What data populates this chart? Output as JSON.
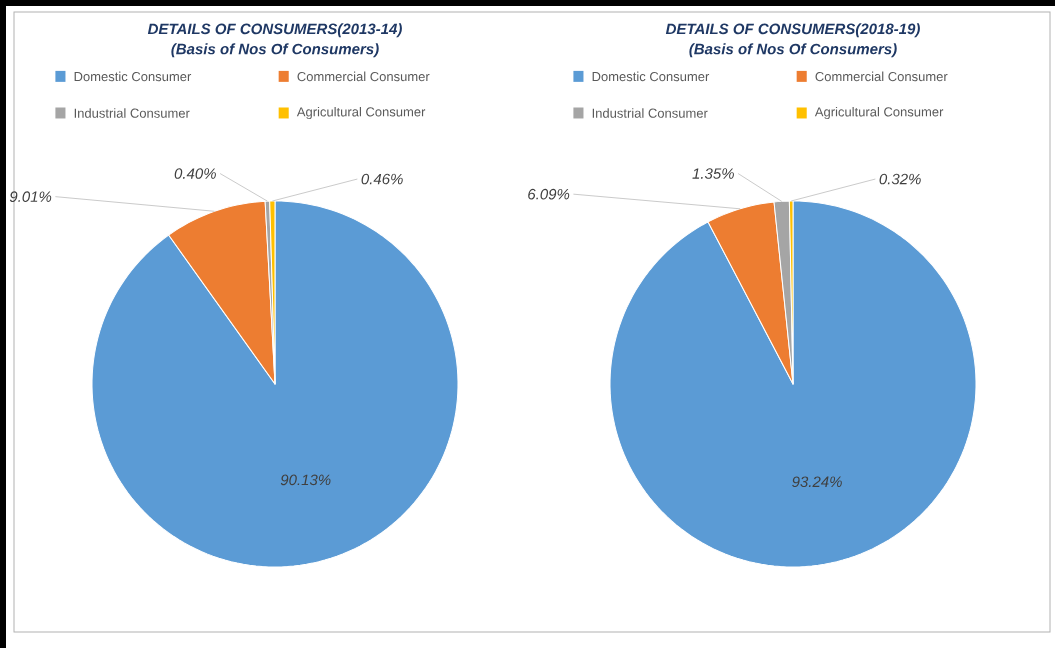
{
  "chart_data": [
    {
      "type": "pie",
      "title": "DETAILS OF CONSUMERS(2013-14)",
      "subtitle": "(Basis of Nos Of Consumers)",
      "categories": [
        "Domestic Consumer",
        "Commercial Consumer",
        "Industrial Consumer",
        "Agricultural Consumer"
      ],
      "values": [
        90.13,
        9.01,
        0.4,
        0.46
      ],
      "value_labels": [
        "90.13%",
        "9.01%",
        "0.40%",
        "0.46%"
      ],
      "colors": [
        "#5b9bd5",
        "#ed7d31",
        "#a5a5a5",
        "#ffc000"
      ],
      "legend": "top"
    },
    {
      "type": "pie",
      "title": "DETAILS OF CONSUMERS(2018-19)",
      "subtitle": "(Basis of Nos Of Consumers)",
      "categories": [
        "Domestic Consumer",
        "Commercial Consumer",
        "Industrial Consumer",
        "Agricultural Consumer"
      ],
      "values": [
        93.24,
        6.09,
        1.35,
        0.32
      ],
      "value_labels": [
        "93.24%",
        "6.09%",
        "1.35%",
        "0.32%"
      ],
      "colors": [
        "#5b9bd5",
        "#ed7d31",
        "#a5a5a5",
        "#ffc000"
      ],
      "legend": "top"
    }
  ]
}
